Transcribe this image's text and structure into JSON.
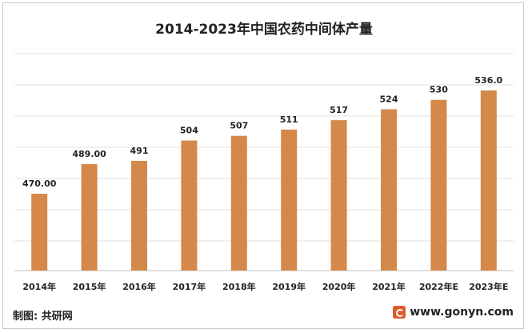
{
  "chart_data": {
    "type": "bar",
    "title": "2014-2023年中国农药中间体产量",
    "categories": [
      "2014年",
      "2015年",
      "2016年",
      "2017年",
      "2018年",
      "2019年",
      "2020年",
      "2021年",
      "2022年E",
      "2023年E"
    ],
    "values": [
      470.0,
      489.0,
      491,
      504,
      507,
      511,
      517,
      524,
      530,
      536.0
    ],
    "value_labels": [
      "470.00",
      "489.00",
      "491",
      "504",
      "507",
      "511",
      "517",
      "524",
      "530",
      "536.0"
    ],
    "bar_color": "#d4894a",
    "grid": true,
    "legend": "none"
  },
  "footer": {
    "source_label": "制图: 共研网",
    "website": "www.gonyn.com"
  },
  "colors": {
    "grid": "#e0e0e0",
    "text": "#222222",
    "logo": "#e05a2a"
  },
  "icons": {
    "logo": "gonyn-logo-icon"
  }
}
